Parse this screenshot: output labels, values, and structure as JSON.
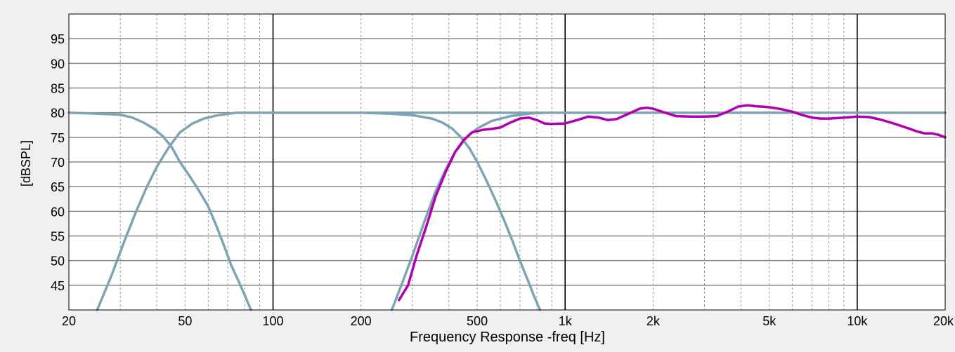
{
  "chart_data": {
    "type": "line",
    "title": "",
    "xlabel": "Frequency Response -freq [Hz]",
    "ylabel": "[dBSPL]",
    "x_scale": "log",
    "xlim": [
      20,
      20000
    ],
    "ylim": [
      40,
      100
    ],
    "grid": true,
    "x_ticks": [
      {
        "value": 20,
        "label": "20"
      },
      {
        "value": 50,
        "label": "50"
      },
      {
        "value": 100,
        "label": "100"
      },
      {
        "value": 200,
        "label": "200"
      },
      {
        "value": 500,
        "label": "500"
      },
      {
        "value": 1000,
        "label": "1k"
      },
      {
        "value": 2000,
        "label": "2k"
      },
      {
        "value": 5000,
        "label": "5k"
      },
      {
        "value": 10000,
        "label": "10k"
      },
      {
        "value": 20000,
        "label": "20k"
      }
    ],
    "y_ticks": [
      45,
      50,
      55,
      60,
      65,
      70,
      75,
      80,
      85,
      90,
      95
    ],
    "colors": {
      "plot_bg": "#ffffff",
      "page_bg": "#f0f0f0",
      "grid_major": "#000000",
      "grid_minor": "#999999",
      "grid_h": "#888888"
    },
    "series": [
      {
        "name": "",
        "color": "#7ea4b4",
        "x": [
          25,
          28,
          31,
          34,
          37,
          40,
          44,
          48,
          53,
          58,
          65,
          75,
          90,
          110,
          150,
          200,
          300,
          500,
          1000,
          2000,
          5000,
          10000,
          20000
        ],
        "y": [
          40,
          47,
          54,
          60,
          65,
          69,
          73,
          76,
          77.8,
          78.8,
          79.5,
          80,
          80,
          80,
          80,
          80,
          80,
          80,
          80,
          80,
          80,
          80,
          80
        ]
      },
      {
        "name": "",
        "color": "#7ea4b4",
        "x": [
          20,
          25,
          30,
          33,
          36,
          39,
          42,
          45,
          48,
          52,
          56,
          60,
          64,
          68,
          72,
          76,
          80,
          84
        ],
        "y": [
          80,
          79.8,
          79.6,
          79,
          78,
          76.8,
          75.2,
          73,
          70,
          67,
          64,
          61,
          57,
          53,
          49,
          46,
          43,
          40
        ]
      },
      {
        "name": "",
        "color": "#7ea4b4",
        "x": [
          255,
          275,
          300,
          330,
          360,
          390,
          420,
          460,
          500,
          560,
          650,
          750,
          850,
          1000,
          2000,
          5000,
          10000,
          20000
        ],
        "y": [
          40,
          45,
          51,
          58,
          64,
          68.5,
          72,
          75,
          76.8,
          78.3,
          79.3,
          79.8,
          80,
          80,
          80,
          80,
          80,
          80
        ]
      },
      {
        "name": "",
        "color": "#7ea4b4",
        "x": [
          200,
          250,
          300,
          350,
          380,
          410,
          440,
          470,
          500,
          540,
          580,
          620,
          660,
          700,
          740,
          780,
          820
        ],
        "y": [
          80,
          79.8,
          79.5,
          78.8,
          78,
          76.8,
          75,
          72.8,
          70,
          66,
          62,
          58,
          54,
          50,
          46.5,
          43,
          40
        ]
      },
      {
        "name": "",
        "color": "#b000b0",
        "x": [
          270,
          290,
          310,
          335,
          360,
          390,
          420,
          450,
          480,
          520,
          560,
          600,
          650,
          700,
          750,
          800,
          850,
          900,
          1000,
          1100,
          1200,
          1300,
          1400,
          1500,
          1650,
          1800,
          1900,
          2000,
          2200,
          2400,
          2700,
          3000,
          3300,
          3600,
          3900,
          4200,
          4500,
          5000,
          5500,
          6000,
          6500,
          7000,
          7500,
          8000,
          9000,
          10000,
          11000,
          12000,
          13000,
          14000,
          15000,
          16000,
          17000,
          18000,
          19000,
          20000
        ],
        "y": [
          42,
          45,
          51,
          57,
          63,
          68,
          72,
          74.5,
          76,
          76.5,
          76.7,
          77,
          78,
          78.8,
          79,
          78.5,
          77.8,
          77.7,
          77.8,
          78.5,
          79.2,
          79,
          78.5,
          78.7,
          79.8,
          80.8,
          81,
          80.8,
          80,
          79.3,
          79.2,
          79.2,
          79.3,
          80.2,
          81.2,
          81.5,
          81.3,
          81.1,
          80.7,
          80.2,
          79.5,
          79,
          78.8,
          78.8,
          79,
          79.2,
          79.1,
          78.6,
          78,
          77.4,
          76.8,
          76.2,
          75.8,
          75.8,
          75.5,
          75
        ]
      }
    ]
  }
}
